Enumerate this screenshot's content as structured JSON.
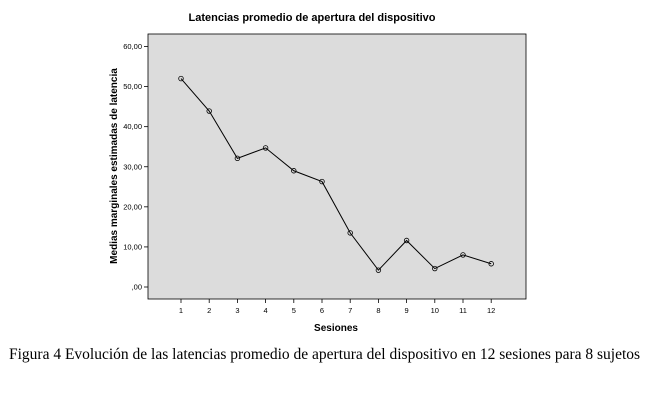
{
  "chart_data": {
    "type": "line",
    "title": "Latencias promedio de apertura del dispositivo",
    "xlabel": "Sesiones",
    "ylabel": "Medias marginales estimadas de latencia",
    "x": [
      1,
      2,
      3,
      4,
      5,
      6,
      7,
      8,
      9,
      10,
      11,
      12
    ],
    "x_tick_labels": [
      "1",
      "2",
      "3",
      "4",
      "5",
      "6",
      "7",
      "8",
      "9",
      "10",
      "11",
      "12"
    ],
    "series": [
      {
        "values": [
          52.0,
          43.9,
          32.1,
          34.7,
          29.0,
          26.3,
          13.5,
          4.2,
          11.6,
          4.6,
          8.0,
          5.8
        ]
      }
    ],
    "ylim": [
      0,
      60
    ],
    "y_ticks": [
      0,
      10,
      20,
      30,
      40,
      50,
      60
    ],
    "y_tick_labels": [
      ",00",
      "10,00",
      "20,00",
      "30,00",
      "40,00",
      "50,00",
      "60,00"
    ],
    "grid": false,
    "plot_background": "#dcdcdc",
    "line_color": "#000000"
  },
  "caption": {
    "text": "Figura 4 Evolución de las latencias promedio de apertura del dispositivo en 12 sesiones para 8 sujetos"
  }
}
